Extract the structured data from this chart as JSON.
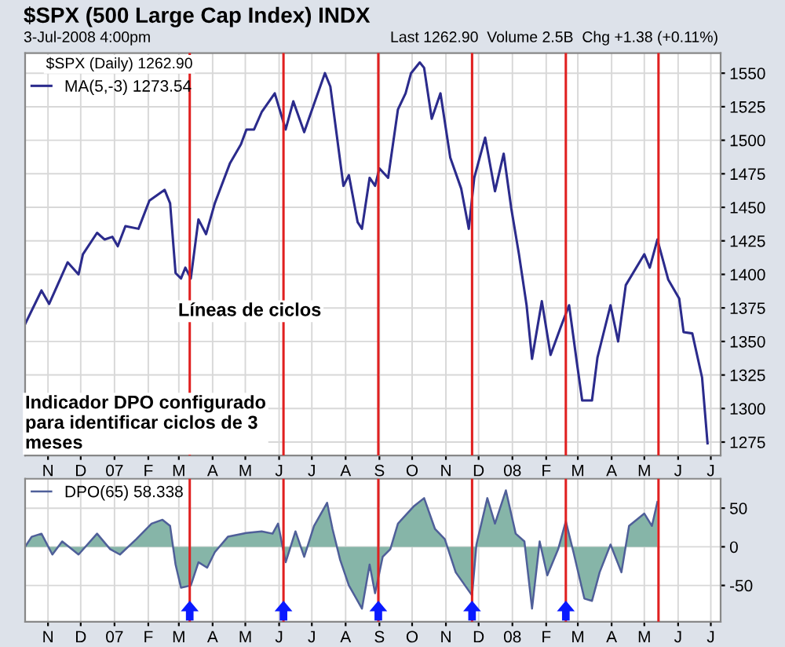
{
  "chart_data": [
    {
      "type": "line",
      "title": "$SPX (500 Large Cap Index) INDX",
      "subtitle": "3-Jul-2008 4:00pm",
      "annotations": [
        "Last 1262.90  Volume 2.5B  Chg +1.38 (+0.11%)",
        "$SPX (Daily) 1262.90",
        "Líneas de ciclos",
        "Indicador DPO configurado\npara identificar ciclos de 3\nmeses"
      ],
      "x": [
        "2006-10-11",
        "2006-10-26",
        "2006-11-02",
        "2006-11-19",
        "2006-11-29",
        "2006-12-03",
        "2006-12-16",
        "2006-12-23",
        "2006-12-30",
        "2007-01-04",
        "2007-01-11",
        "2007-01-23",
        "2007-02-02",
        "2007-02-16",
        "2007-02-21",
        "2007-02-26",
        "2007-03-03",
        "2007-03-07",
        "2007-03-12",
        "2007-03-19",
        "2007-03-26",
        "2007-04-03",
        "2007-04-17",
        "2007-04-27",
        "2007-05-02",
        "2007-05-09",
        "2007-05-16",
        "2007-05-28",
        "2007-06-07",
        "2007-06-14",
        "2007-06-24",
        "2007-07-03",
        "2007-07-13",
        "2007-07-18",
        "2007-07-30",
        "2007-08-04",
        "2007-08-12",
        "2007-08-16",
        "2007-08-23",
        "2007-08-28",
        "2007-09-01",
        "2007-09-09",
        "2007-09-18",
        "2007-09-25",
        "2007-09-30",
        "2007-10-08",
        "2007-10-12",
        "2007-10-19",
        "2007-10-27",
        "2007-11-05",
        "2007-11-15",
        "2007-11-22",
        "2007-11-27",
        "2007-12-07",
        "2007-12-16",
        "2007-12-24",
        "2007-12-31",
        "2008-01-07",
        "2008-01-14",
        "2008-01-19",
        "2008-01-28",
        "2008-02-05",
        "2008-02-14",
        "2008-02-22",
        "2008-02-29",
        "2008-03-05",
        "2008-03-14",
        "2008-03-19",
        "2008-03-31",
        "2008-04-07",
        "2008-04-14",
        "2008-05-01",
        "2008-05-06",
        "2008-05-13",
        "2008-05-23",
        "2008-06-02",
        "2008-06-06",
        "2008-06-14",
        "2008-06-23",
        "2008-06-28"
      ],
      "series": [
        {
          "name": "MA(5,-3) 1273.54",
          "color": "#2b2b8c",
          "values": [
            1363,
            1388,
            1378,
            1409,
            1400,
            1415,
            1431,
            1426,
            1428,
            1421,
            1436,
            1434,
            1455,
            1463,
            1453,
            1401,
            1397,
            1405,
            1397,
            1441,
            1430,
            1453,
            1483,
            1497,
            1508,
            1508,
            1521,
            1535,
            1508,
            1529,
            1506,
            1527,
            1550,
            1540,
            1466,
            1474,
            1439,
            1434,
            1472,
            1466,
            1479,
            1472,
            1523,
            1535,
            1550,
            1558,
            1554,
            1516,
            1535,
            1487,
            1464,
            1434,
            1472,
            1502,
            1462,
            1490,
            1449,
            1415,
            1377,
            1337,
            1380,
            1340,
            1360,
            1377,
            1335,
            1306,
            1306,
            1338,
            1377,
            1350,
            1392,
            1415,
            1405,
            1426,
            1396,
            1382,
            1357,
            1356,
            1323,
            1274
          ]
        }
      ],
      "xlim": [
        "2006-10-11",
        "2008-07-10"
      ],
      "xticks": [
        {
          "value": "2006-11-01",
          "label": "N"
        },
        {
          "value": "2006-12-01",
          "label": "D"
        },
        {
          "value": "2007-01-01",
          "label": "07"
        },
        {
          "value": "2007-02-01",
          "label": "F"
        },
        {
          "value": "2007-03-01",
          "label": "M"
        },
        {
          "value": "2007-04-01",
          "label": "A"
        },
        {
          "value": "2007-05-01",
          "label": "M"
        },
        {
          "value": "2007-06-01",
          "label": "J"
        },
        {
          "value": "2007-07-01",
          "label": "J"
        },
        {
          "value": "2007-08-01",
          "label": "A"
        },
        {
          "value": "2007-09-01",
          "label": "S"
        },
        {
          "value": "2007-10-01",
          "label": "O"
        },
        {
          "value": "2007-11-01",
          "label": "N"
        },
        {
          "value": "2007-12-01",
          "label": "D"
        },
        {
          "value": "2008-01-01",
          "label": "08"
        },
        {
          "value": "2008-02-01",
          "label": "F"
        },
        {
          "value": "2008-03-01",
          "label": "M"
        },
        {
          "value": "2008-04-01",
          "label": "A"
        },
        {
          "value": "2008-05-01",
          "label": "M"
        },
        {
          "value": "2008-06-01",
          "label": "J"
        },
        {
          "value": "2008-07-01",
          "label": "J"
        }
      ],
      "ylim": [
        1265,
        1565
      ],
      "yticks": [
        1275,
        1300,
        1325,
        1350,
        1375,
        1400,
        1425,
        1450,
        1475,
        1500,
        1525,
        1550
      ],
      "grid": true,
      "legend": "top left",
      "ref_lines": [
        {
          "axis": "x",
          "value": "2007-03-11",
          "color": "#e02020"
        },
        {
          "axis": "x",
          "value": "2007-06-05",
          "color": "#e02020"
        },
        {
          "axis": "x",
          "value": "2007-08-31",
          "color": "#e02020"
        },
        {
          "axis": "x",
          "value": "2007-11-25",
          "color": "#e02020"
        },
        {
          "axis": "x",
          "value": "2008-02-19",
          "color": "#e02020"
        },
        {
          "axis": "x",
          "value": "2008-05-14",
          "color": "#e02020"
        }
      ]
    },
    {
      "type": "area",
      "x": [
        "2006-10-11",
        "2006-10-17",
        "2006-10-26",
        "2006-11-05",
        "2006-11-14",
        "2006-11-29",
        "2006-12-16",
        "2006-12-28",
        "2007-01-06",
        "2007-01-21",
        "2007-02-04",
        "2007-02-14",
        "2007-02-21",
        "2007-02-26",
        "2007-03-03",
        "2007-03-12",
        "2007-03-19",
        "2007-03-27",
        "2007-04-03",
        "2007-04-15",
        "2007-05-02",
        "2007-05-16",
        "2007-05-26",
        "2007-05-31",
        "2007-06-07",
        "2007-06-16",
        "2007-06-24",
        "2007-07-03",
        "2007-07-15",
        "2007-07-20",
        "2007-07-27",
        "2007-08-04",
        "2007-08-16",
        "2007-08-23",
        "2007-08-28",
        "2007-09-04",
        "2007-09-11",
        "2007-09-18",
        "2007-10-03",
        "2007-10-12",
        "2007-10-22",
        "2007-10-31",
        "2007-11-10",
        "2007-11-25",
        "2007-11-29",
        "2007-12-09",
        "2007-12-16",
        "2007-12-26",
        "2008-01-04",
        "2008-01-12",
        "2008-01-19",
        "2008-01-26",
        "2008-02-02",
        "2008-02-12",
        "2008-02-19",
        "2008-02-26",
        "2008-03-07",
        "2008-03-14",
        "2008-03-21",
        "2008-03-31",
        "2008-04-10",
        "2008-04-17",
        "2008-05-01",
        "2008-05-08",
        "2008-05-13"
      ],
      "series": [
        {
          "name": "DPO(65) 58.338",
          "color": "#4f5f99",
          "values": [
            0,
            13,
            17,
            -10,
            7,
            -10,
            17,
            -3,
            -10,
            10,
            30,
            35,
            27,
            -23,
            -53,
            -50,
            -20,
            -27,
            -7,
            13,
            18,
            20,
            17,
            30,
            -20,
            20,
            -13,
            27,
            57,
            23,
            -17,
            -50,
            -80,
            -23,
            -60,
            -13,
            -3,
            30,
            53,
            63,
            23,
            10,
            -33,
            -63,
            3,
            63,
            30,
            73,
            17,
            7,
            -80,
            7,
            -37,
            -3,
            33,
            -7,
            -67,
            -70,
            -33,
            3,
            -33,
            27,
            43,
            27,
            58
          ]
        }
      ],
      "xlim": [
        "2006-10-11",
        "2008-07-10"
      ],
      "xticks": [
        {
          "value": "2006-11-01",
          "label": "N"
        },
        {
          "value": "2006-12-01",
          "label": "D"
        },
        {
          "value": "2007-01-01",
          "label": "07"
        },
        {
          "value": "2007-02-01",
          "label": "F"
        },
        {
          "value": "2007-03-01",
          "label": "M"
        },
        {
          "value": "2007-04-01",
          "label": "A"
        },
        {
          "value": "2007-05-01",
          "label": "M"
        },
        {
          "value": "2007-06-01",
          "label": "J"
        },
        {
          "value": "2007-07-01",
          "label": "J"
        },
        {
          "value": "2007-08-01",
          "label": "A"
        },
        {
          "value": "2007-09-01",
          "label": "S"
        },
        {
          "value": "2007-10-01",
          "label": "O"
        },
        {
          "value": "2007-11-01",
          "label": "N"
        },
        {
          "value": "2007-12-01",
          "label": "D"
        },
        {
          "value": "2008-01-01",
          "label": "08"
        },
        {
          "value": "2008-02-01",
          "label": "F"
        },
        {
          "value": "2008-03-01",
          "label": "M"
        },
        {
          "value": "2008-04-01",
          "label": "A"
        },
        {
          "value": "2008-05-01",
          "label": "M"
        },
        {
          "value": "2008-06-01",
          "label": "J"
        },
        {
          "value": "2008-07-01",
          "label": "J"
        }
      ],
      "ylim": [
        -97,
        88
      ],
      "yticks": [
        -50,
        0,
        50
      ],
      "grid": true,
      "legend": "top left",
      "ref_lines": [
        {
          "axis": "x",
          "value": "2007-03-11",
          "color": "#e02020"
        },
        {
          "axis": "x",
          "value": "2007-06-05",
          "color": "#e02020"
        },
        {
          "axis": "x",
          "value": "2007-08-31",
          "color": "#e02020"
        },
        {
          "axis": "x",
          "value": "2007-11-25",
          "color": "#e02020"
        },
        {
          "axis": "x",
          "value": "2008-02-19",
          "color": "#e02020"
        },
        {
          "axis": "x",
          "value": "2008-05-14",
          "color": "#e02020"
        }
      ]
    }
  ]
}
